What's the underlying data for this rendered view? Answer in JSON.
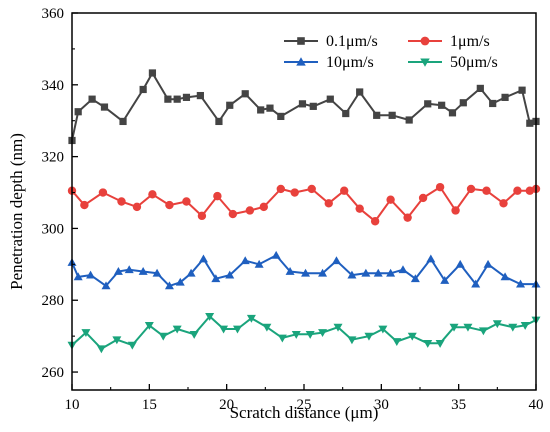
{
  "chart_data": {
    "type": "line",
    "xlabel": "Scratch distance (μm)",
    "ylabel": "Penetration depth (nm)",
    "xlim": [
      10,
      40
    ],
    "ylim": [
      255,
      360
    ],
    "xticks": [
      "10",
      "15",
      "20",
      "25",
      "30",
      "35",
      "40"
    ],
    "yticks": [
      "260",
      "280",
      "300",
      "320",
      "340",
      "360"
    ],
    "legend_position": "top-right",
    "series": [
      {
        "name": "0.1μm/s",
        "color": "#444444",
        "marker": "square",
        "x": [
          10.0,
          10.4,
          11.3,
          12.1,
          13.3,
          14.6,
          15.2,
          16.2,
          16.8,
          17.4,
          18.3,
          19.5,
          20.2,
          21.2,
          22.2,
          22.8,
          23.5,
          24.9,
          25.6,
          26.7,
          27.7,
          28.6,
          29.7,
          30.7,
          31.8,
          33.0,
          33.9,
          34.6,
          35.3,
          36.4,
          37.2,
          38.0,
          39.1,
          39.6,
          40.0
        ],
        "y": [
          324.5,
          332.5,
          336.0,
          333.8,
          329.8,
          338.7,
          343.3,
          336.0,
          336.0,
          336.5,
          337.0,
          329.8,
          334.3,
          337.5,
          333.0,
          333.5,
          331.2,
          334.7,
          334.0,
          336.0,
          332.0,
          338.0,
          331.5,
          331.5,
          330.2,
          334.7,
          334.3,
          332.2,
          335.0,
          339.0,
          334.8,
          336.5,
          338.5,
          329.3,
          329.8
        ]
      },
      {
        "name": "1μm/s",
        "color": "#e8413c",
        "marker": "circle",
        "x": [
          10.0,
          10.8,
          12.0,
          13.2,
          14.2,
          15.2,
          16.3,
          17.4,
          18.4,
          19.4,
          20.4,
          21.5,
          22.4,
          23.5,
          24.4,
          25.5,
          26.6,
          27.6,
          28.6,
          29.6,
          30.6,
          31.7,
          32.7,
          33.8,
          34.8,
          35.8,
          36.8,
          37.9,
          38.8,
          39.6,
          40.0
        ],
        "y": [
          310.5,
          306.5,
          310.0,
          307.5,
          306.0,
          309.5,
          306.5,
          307.5,
          303.5,
          309.0,
          304.0,
          305.0,
          306.0,
          311.0,
          310.0,
          311.0,
          307.0,
          310.5,
          305.5,
          302.0,
          308.0,
          303.0,
          308.5,
          311.5,
          305.0,
          311.0,
          310.5,
          307.0,
          310.5,
          310.5,
          311.0
        ]
      },
      {
        "name": "10μm/s",
        "color": "#1f5fbf",
        "marker": "triangle-up",
        "x": [
          10.0,
          10.4,
          11.2,
          12.2,
          13.0,
          13.7,
          14.6,
          15.5,
          16.3,
          17.0,
          17.7,
          18.5,
          19.3,
          20.2,
          21.2,
          22.1,
          23.2,
          24.1,
          25.1,
          26.2,
          27.1,
          28.1,
          29.0,
          29.8,
          30.6,
          31.4,
          32.2,
          33.2,
          34.1,
          35.1,
          36.1,
          36.9,
          38.0,
          39.0,
          40.0
        ],
        "y": [
          290.5,
          286.5,
          287.0,
          284.0,
          288.0,
          288.5,
          288.0,
          287.5,
          284.0,
          285.0,
          287.5,
          291.5,
          286.0,
          287.0,
          291.0,
          290.0,
          292.5,
          288.0,
          287.5,
          287.5,
          291.0,
          287.0,
          287.5,
          287.5,
          287.5,
          288.5,
          286.0,
          291.5,
          285.5,
          290.0,
          284.5,
          290.0,
          286.5,
          284.5,
          284.5
        ]
      },
      {
        "name": "50μm/s",
        "color": "#1aa47c",
        "marker": "triangle-down",
        "x": [
          10.0,
          10.9,
          11.9,
          12.9,
          13.9,
          15.0,
          15.9,
          16.8,
          17.9,
          18.9,
          19.8,
          20.7,
          21.6,
          22.6,
          23.6,
          24.5,
          25.4,
          26.2,
          27.2,
          28.1,
          29.2,
          30.1,
          31.0,
          32.0,
          33.0,
          33.8,
          34.7,
          35.6,
          36.6,
          37.5,
          38.5,
          39.3,
          40.0
        ],
        "y": [
          267.5,
          271.0,
          266.5,
          269.0,
          267.5,
          273.0,
          270.0,
          272.0,
          270.5,
          275.5,
          272.0,
          272.0,
          275.0,
          272.5,
          269.5,
          270.5,
          270.5,
          271.0,
          272.5,
          269.0,
          270.0,
          272.0,
          268.5,
          270.0,
          268.0,
          268.0,
          272.5,
          272.5,
          271.5,
          273.5,
          272.5,
          273.0,
          274.5
        ]
      }
    ]
  }
}
